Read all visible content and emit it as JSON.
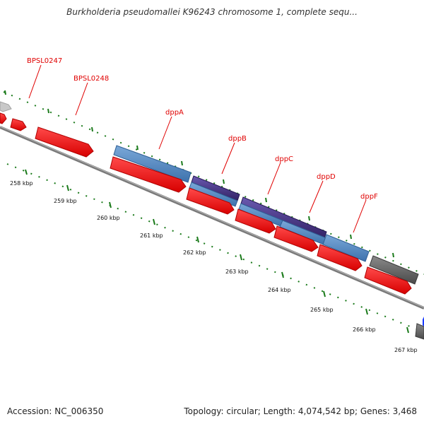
{
  "header": {
    "title": "Burkholderia pseudomallei K96243 chromosome 1, complete sequ..."
  },
  "footer": {
    "accession": "Accession: NC_006350",
    "topology": "Topology: circular; Length: 4,074,542 bp; Genes: 3,468"
  },
  "map": {
    "gene_labels": [
      "BPSL0247",
      "BPSL0248",
      "dppA",
      "dppB",
      "dppC",
      "dppD",
      "dppF"
    ],
    "kbp_labels": [
      "258 kbp",
      "259 kbp",
      "260 kbp",
      "261 kbp",
      "262 kbp",
      "263 kbp",
      "264 kbp",
      "265 kbp",
      "266 kbp",
      "267 kbp"
    ],
    "colors": {
      "cds": "#ff0000",
      "gene_blue": "#4f86c0",
      "gene_purple": "#4a3a8c",
      "gene_grey": "#666666",
      "gene_lightgrey": "#c8c8c8",
      "backbone": "#7a7a7a",
      "ticks": "#1a7a1a",
      "label": "#e00000"
    }
  }
}
